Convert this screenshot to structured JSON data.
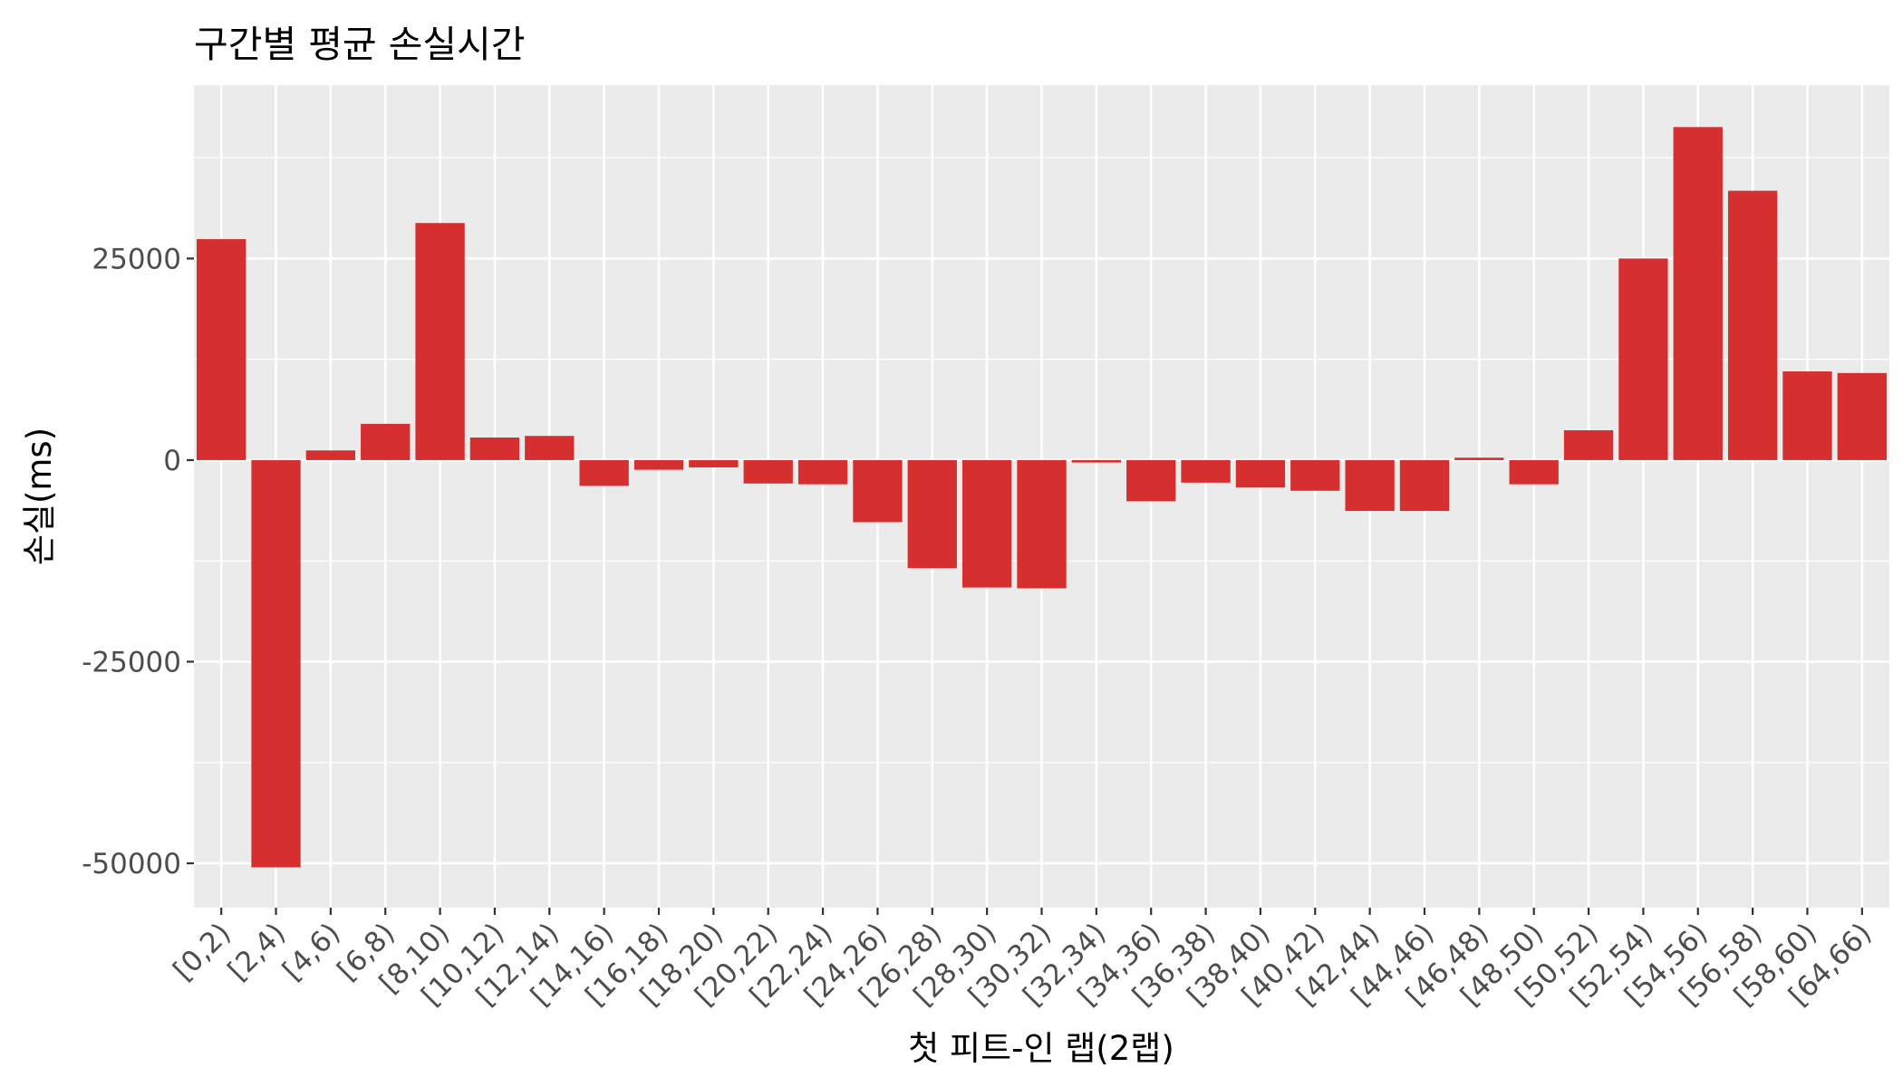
{
  "chart_data": {
    "type": "bar",
    "title": "구간별 평균 손실시간",
    "xlabel": "첫 피트-인 랩(2랩)",
    "ylabel": "손실(ms)",
    "categories": [
      "[0,2)",
      "[2,4)",
      "[4,6)",
      "[6,8)",
      "[8,10)",
      "[10,12)",
      "[12,14)",
      "[14,16)",
      "[16,18)",
      "[18,20)",
      "[20,22)",
      "[22,24)",
      "[24,26)",
      "[26,28)",
      "[28,30)",
      "[30,32)",
      "[32,34)",
      "[34,36)",
      "[36,38)",
      "[38,40)",
      "[40,42)",
      "[42,44)",
      "[44,46)",
      "[46,48)",
      "[48,50)",
      "[50,52)",
      "[52,54)",
      "[54,56)",
      "[56,58)",
      "[58,60)",
      "[64,66)"
    ],
    "values": [
      27400,
      -50500,
      1200,
      4500,
      29400,
      2800,
      3000,
      -3200,
      -1200,
      -900,
      -2900,
      -3000,
      -7700,
      -13400,
      -15800,
      -15900,
      -300,
      -5100,
      -2800,
      -3400,
      -3800,
      -6300,
      -6300,
      300,
      -3000,
      3700,
      25000,
      41300,
      33400,
      11000,
      10800
    ],
    "yticks": [
      -50000,
      -25000,
      0,
      25000
    ],
    "ylim": [
      -55500,
      46500
    ],
    "grid": true,
    "legend": "none",
    "bar_color": "#d62f2f",
    "panel_color": "#ebebeb",
    "grid_color": "#ffffff"
  }
}
